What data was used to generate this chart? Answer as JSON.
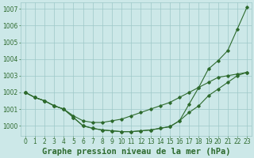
{
  "title": "Graphe pression niveau de la mer (hPa)",
  "x_labels": [
    "0",
    "1",
    "2",
    "3",
    "4",
    "5",
    "6",
    "7",
    "8",
    "9",
    "10",
    "11",
    "12",
    "13",
    "14",
    "15",
    "16",
    "17",
    "18",
    "19",
    "20",
    "21",
    "22",
    "23"
  ],
  "x_values": [
    0,
    1,
    2,
    3,
    4,
    5,
    6,
    7,
    8,
    9,
    10,
    11,
    12,
    13,
    14,
    15,
    16,
    17,
    18,
    19,
    20,
    21,
    22,
    23
  ],
  "line_bottom": [
    1002,
    1001.7,
    1001.5,
    1001.2,
    1001.0,
    1000.5,
    1000.0,
    999.85,
    999.75,
    999.7,
    999.65,
    999.65,
    999.7,
    999.75,
    999.85,
    999.95,
    1000.3,
    1000.8,
    1001.2,
    1001.8,
    1002.2,
    1002.6,
    1003.0,
    1003.2
  ],
  "line_mid": [
    1002,
    1001.7,
    1001.5,
    1001.2,
    1001.0,
    1000.6,
    1000.3,
    1000.2,
    1000.2,
    1000.3,
    1000.4,
    1000.6,
    1000.8,
    1001.0,
    1001.2,
    1001.4,
    1001.7,
    1002.0,
    1002.3,
    1002.6,
    1002.9,
    1003.0,
    1003.1,
    1003.2
  ],
  "line_top": [
    1002,
    1001.7,
    1001.5,
    1001.2,
    1001.0,
    1000.5,
    1000.0,
    999.85,
    999.75,
    999.7,
    999.65,
    999.65,
    999.7,
    999.75,
    999.85,
    999.95,
    1000.3,
    1001.3,
    1002.3,
    1003.4,
    1003.9,
    1004.5,
    1005.8,
    1007.1
  ],
  "line_color": "#2d6a2d",
  "bg_color": "#cce8e8",
  "grid_color": "#9ec8c8",
  "ylim": [
    999.4,
    1007.4
  ],
  "yticks": [
    1000,
    1001,
    1002,
    1003,
    1004,
    1005,
    1006,
    1007
  ],
  "title_fontsize": 7.5,
  "tick_fontsize": 5.5
}
